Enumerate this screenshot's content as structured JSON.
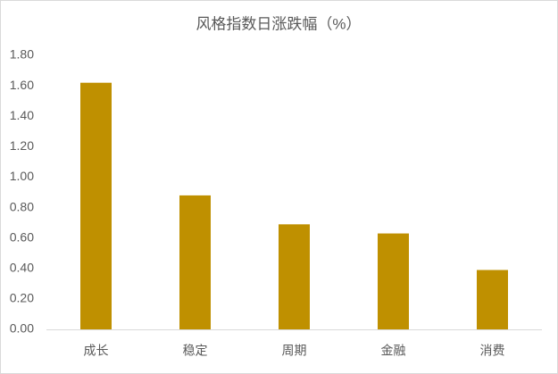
{
  "chart_data": {
    "type": "bar",
    "title": "风格指数日涨跌幅（%）",
    "categories": [
      "成长",
      "稳定",
      "周期",
      "金融",
      "消费"
    ],
    "values": [
      1.62,
      0.88,
      0.69,
      0.63,
      0.39
    ],
    "color": "#bf9000",
    "ylim": [
      0,
      1.8
    ],
    "yticks": [
      {
        "value": 0,
        "label": "0.00"
      },
      {
        "value": 0.2,
        "label": "0.20"
      },
      {
        "value": 0.4,
        "label": "0.40"
      },
      {
        "value": 0.6,
        "label": "0.60"
      },
      {
        "value": 0.8,
        "label": "0.80"
      },
      {
        "value": 1.0,
        "label": "1.00"
      },
      {
        "value": 1.2,
        "label": "1.20"
      },
      {
        "value": 1.4,
        "label": "1.40"
      },
      {
        "value": 1.6,
        "label": "1.60"
      },
      {
        "value": 1.8,
        "label": "1.80"
      }
    ],
    "grid": false
  }
}
